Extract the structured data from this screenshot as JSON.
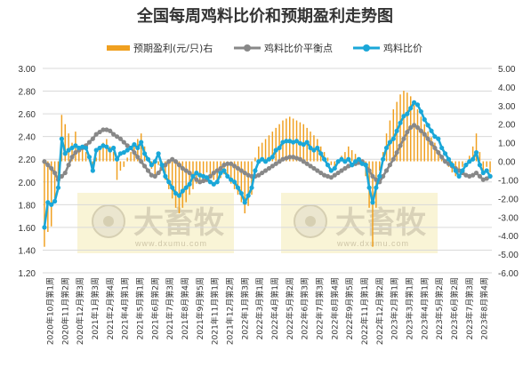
{
  "chart_data": {
    "type": "bar+line",
    "title": "全国每周鸡料比价和预期盈利走势图",
    "legend": [
      {
        "name": "预期盈利(元/只)右",
        "type": "bar",
        "color": "#f0a020"
      },
      {
        "name": "鸡料比价平衡点",
        "type": "line",
        "color": "#888888"
      },
      {
        "name": "鸡料比价",
        "type": "line",
        "color": "#1aa7d8"
      }
    ],
    "y_left": {
      "min": 1.2,
      "max": 3.0,
      "step": 0.2,
      "ticks": [
        "1.20",
        "1.40",
        "1.60",
        "1.80",
        "2.00",
        "2.20",
        "2.40",
        "2.60",
        "2.80",
        "3.00"
      ]
    },
    "y_right": {
      "min": -6,
      "max": 5,
      "step": 1,
      "ticks": [
        "-6.00",
        "-5.00",
        "-4.00",
        "-3.00",
        "-2.00",
        "-1.00",
        "0.00",
        "1.00",
        "2.00",
        "3.00",
        "4.00",
        "5.00"
      ]
    },
    "x_tick_labels": [
      "2020年10月第1周",
      "2020年11月第2周",
      "2020年12月第3周",
      "2021年1月第3周",
      "2021年2月第4周",
      "2021年4月第1周",
      "2021年5月第1周",
      "2021年6月第2周",
      "2021年7月第3周",
      "2021年8月第4周",
      "2021年9月第5周",
      "2021年11月第1周",
      "2021年12月第2周",
      "2022年1月第3周",
      "2022年3月第1周",
      "2022年4月第1周",
      "2022年5月第2周",
      "2022年6月第3周",
      "2022年7月第3周",
      "2022年8月第4周",
      "2022年9月第5周",
      "2022年11月第1周",
      "2022年12月第2周",
      "2023年2月第1周",
      "2023年3月第1周",
      "2023年4月第1周",
      "2023年5月第2周",
      "2023年6月第2周",
      "2023年7月第3周",
      "2023年8月第4周"
    ],
    "watermark": {
      "brand": "大畜牧",
      "site": "www.dxumu.com"
    },
    "series": [
      {
        "name": "鸡料比价",
        "values": [
          1.6,
          1.82,
          1.8,
          1.83,
          1.95,
          2.38,
          2.25,
          2.28,
          2.3,
          2.32,
          2.3,
          2.31,
          2.3,
          2.22,
          2.1,
          2.28,
          2.3,
          2.32,
          2.31,
          2.28,
          2.3,
          2.2,
          2.25,
          2.26,
          2.28,
          2.3,
          2.33,
          2.3,
          2.35,
          2.25,
          2.2,
          2.15,
          2.18,
          2.25,
          2.15,
          2.05,
          2.0,
          1.95,
          1.9,
          1.88,
          1.92,
          1.95,
          1.98,
          2.05,
          2.08,
          2.06,
          2.05,
          2.04,
          2.0,
          1.98,
          2.0,
          2.08,
          2.1,
          2.05,
          2.02,
          2.0,
          1.95,
          1.9,
          1.82,
          1.88,
          1.95,
          2.1,
          2.18,
          2.2,
          2.18,
          2.2,
          2.22,
          2.28,
          2.3,
          2.35,
          2.36,
          2.36,
          2.35,
          2.36,
          2.34,
          2.33,
          2.35,
          2.3,
          2.28,
          2.3,
          2.25,
          2.2,
          2.15,
          2.1,
          2.12,
          2.18,
          2.2,
          2.18,
          2.2,
          2.15,
          2.18,
          2.2,
          2.16,
          2.15,
          1.95,
          1.82,
          1.95,
          2.05,
          2.2,
          2.3,
          2.35,
          2.38,
          2.45,
          2.52,
          2.58,
          2.6,
          2.65,
          2.7,
          2.68,
          2.62,
          2.55,
          2.5,
          2.45,
          2.4,
          2.38,
          2.3,
          2.25,
          2.2,
          2.15,
          2.1,
          2.05,
          2.1,
          2.15,
          2.18,
          2.2,
          2.26,
          2.15,
          2.08,
          2.1,
          2.05
        ]
      },
      {
        "name": "鸡料比价平衡点",
        "values": [
          2.18,
          2.15,
          2.12,
          2.08,
          2.02,
          2.05,
          2.08,
          2.15,
          2.22,
          2.26,
          2.28,
          2.3,
          2.32,
          2.35,
          2.38,
          2.42,
          2.44,
          2.46,
          2.46,
          2.45,
          2.42,
          2.4,
          2.38,
          2.35,
          2.32,
          2.3,
          2.26,
          2.22,
          2.18,
          2.14,
          2.1,
          2.06,
          2.05,
          2.08,
          2.12,
          2.15,
          2.18,
          2.2,
          2.18,
          2.15,
          2.12,
          2.1,
          2.08,
          2.05,
          2.02,
          2.0,
          2.01,
          2.02,
          2.05,
          2.08,
          2.1,
          2.12,
          2.15,
          2.16,
          2.16,
          2.14,
          2.12,
          2.1,
          2.08,
          2.06,
          2.05,
          2.05,
          2.06,
          2.08,
          2.1,
          2.12,
          2.14,
          2.16,
          2.18,
          2.2,
          2.21,
          2.22,
          2.22,
          2.21,
          2.2,
          2.18,
          2.16,
          2.14,
          2.12,
          2.1,
          2.08,
          2.06,
          2.05,
          2.04,
          2.06,
          2.08,
          2.1,
          2.12,
          2.14,
          2.15,
          2.16,
          2.17,
          2.18,
          2.15,
          2.1,
          2.05,
          2.02,
          2.0,
          2.05,
          2.1,
          2.15,
          2.2,
          2.26,
          2.32,
          2.38,
          2.44,
          2.48,
          2.5,
          2.48,
          2.45,
          2.42,
          2.38,
          2.34,
          2.3,
          2.26,
          2.22,
          2.18,
          2.16,
          2.14,
          2.12,
          2.1,
          2.08,
          2.06,
          2.05,
          2.06,
          2.08,
          2.05,
          2.02,
          2.03,
          2.05
        ]
      },
      {
        "name": "预期盈利(元/只)右",
        "values": [
          -4.6,
          -3.8,
          -3.5,
          -2.0,
          -1.5,
          2.5,
          2.0,
          1.5,
          1.0,
          1.6,
          0.8,
          0.6,
          0.5,
          0.3,
          -0.5,
          0.2,
          0.8,
          1.0,
          1.2,
          0.8,
          0.5,
          -1.0,
          -0.5,
          -0.3,
          0.2,
          0.5,
          0.9,
          1.2,
          1.5,
          0.8,
          0.2,
          -0.4,
          -0.8,
          -0.2,
          -0.5,
          -1.0,
          -1.5,
          -2.0,
          -2.5,
          -2.8,
          -2.5,
          -2.2,
          -1.8,
          -1.5,
          -1.2,
          -1.0,
          -0.8,
          -0.6,
          -0.8,
          -1.0,
          -1.2,
          -0.9,
          -0.7,
          -0.9,
          -1.2,
          -1.5,
          -1.8,
          -2.2,
          -2.8,
          -2.4,
          -1.8,
          0.2,
          0.8,
          1.0,
          1.2,
          1.4,
          1.6,
          1.8,
          2.0,
          2.2,
          2.3,
          2.4,
          2.3,
          2.2,
          2.1,
          2.0,
          1.8,
          1.6,
          1.4,
          1.2,
          0.8,
          0.5,
          0.2,
          -0.2,
          -0.3,
          0.0,
          0.3,
          0.5,
          0.8,
          0.6,
          0.4,
          0.2,
          0.0,
          -0.8,
          -2.5,
          -4.6,
          -2.5,
          -0.5,
          0.5,
          1.5,
          2.2,
          2.8,
          3.2,
          3.6,
          3.8,
          3.7,
          3.5,
          3.2,
          2.8,
          2.4,
          2.0,
          1.6,
          1.3,
          1.0,
          0.6,
          0.3,
          0.0,
          -0.3,
          -0.6,
          -0.8,
          -0.6,
          -0.3,
          0.0,
          0.3,
          0.8,
          1.5,
          0.5,
          -0.5,
          -0.3,
          -0.6
        ]
      }
    ]
  }
}
